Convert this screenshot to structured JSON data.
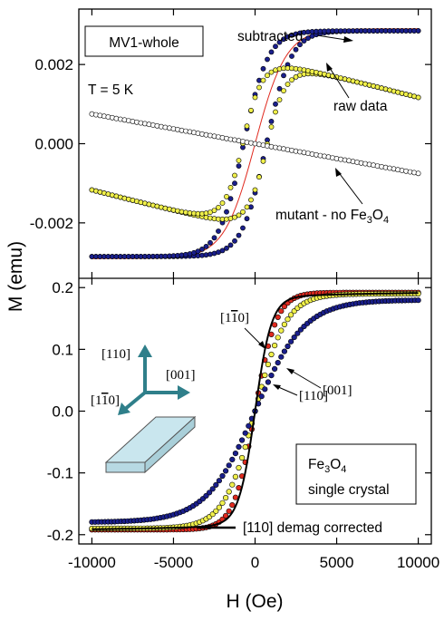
{
  "chart_data": [
    {
      "type": "scatter",
      "panel": "top",
      "title": "",
      "xlabel": "H (Oe)",
      "ylabel": "M (emu)",
      "xlim": [
        -10800,
        10800
      ],
      "ylim": [
        -0.0034,
        0.0034
      ],
      "xticks": [
        -10000,
        -5000,
        0,
        5000,
        10000
      ],
      "yticks": [
        -0.002,
        0.0,
        0.002
      ],
      "ytick_labels": [
        "-0.002",
        "0.000",
        "0.002"
      ],
      "label_box": "MV1-whole",
      "temperature_label": "T = 5 K",
      "annotations": {
        "subtracted": "subtracted",
        "raw": "raw data",
        "mutant_prefix": "mutant - no Fe",
        "mutant_sub3": "3",
        "mutant_O": "O",
        "mutant_sub4": "4"
      },
      "series": [
        {
          "name": "subtracted",
          "color": "#1a1f8c",
          "Ms": 0.00285,
          "Hc": 700,
          "w": 1500,
          "mode": "hysteresis",
          "marker": "circle"
        },
        {
          "name": "raw data",
          "color": "#f0f04a",
          "Ms": 0.00285,
          "Hc": 700,
          "w": 1500,
          "linear": -7e-05,
          "mode": "hysteresis",
          "marker": "circle"
        },
        {
          "name": "mutant - no Fe3O4",
          "color": "#ffffff",
          "slope": -7.5e-08,
          "mode": "linear",
          "marker": "open-circle"
        }
      ]
    },
    {
      "type": "scatter",
      "panel": "bottom",
      "title": "",
      "xlabel": "H (Oe)",
      "ylabel": "M (emu)",
      "xlim": [
        -10800,
        10800
      ],
      "ylim": [
        -0.215,
        0.215
      ],
      "xticks": [
        -10000,
        -5000,
        0,
        5000,
        10000
      ],
      "xtick_labels": [
        "-10000",
        "-5000",
        "0",
        "5000",
        "10000"
      ],
      "yticks": [
        -0.2,
        -0.1,
        0.0,
        0.1,
        0.2
      ],
      "ytick_labels": [
        "-0.2",
        "-0.1",
        "0.0",
        "0.1",
        "0.2"
      ],
      "label_box_line1_a": "Fe",
      "label_box_line1_b": "3",
      "label_box_line1_c": "O",
      "label_box_line1_d": "4",
      "label_box_line2": "single crystal",
      "directions": {
        "a110": "[110]",
        "a001": "[001]",
        "a1m10_pre": "[1",
        "a1m10_bar": "1",
        "a1m10_post": "0]"
      },
      "legend_line": "[110] demag corrected",
      "series": [
        {
          "name": "[1-10]",
          "color": "#e02a1f",
          "Ms": 0.192,
          "a": 1300
        },
        {
          "name": "[001]",
          "color": "#f0f04a",
          "Ms": 0.19,
          "a": 1900
        },
        {
          "name": "[110]",
          "color": "#1a1f8c",
          "Ms": 0.18,
          "a": 3000
        },
        {
          "name": "[110] demag corrected",
          "color": "#000000",
          "Ms": 0.193,
          "a": 1000
        }
      ]
    }
  ]
}
